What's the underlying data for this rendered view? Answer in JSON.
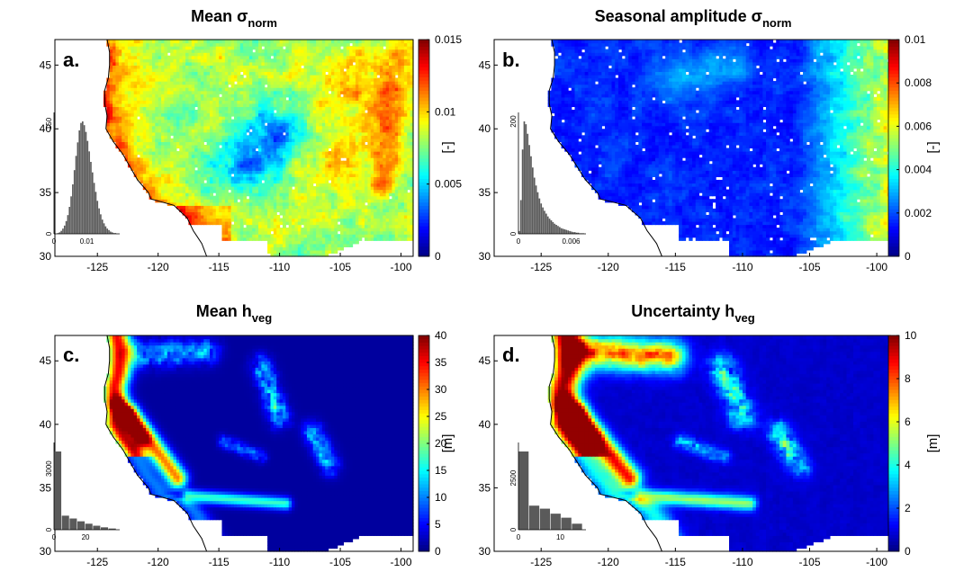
{
  "chart_data": [
    {
      "type": "heatmap",
      "panel_label": "a.",
      "title": "Mean σ",
      "title_sub": "norm",
      "colorbar": {
        "min": 0,
        "max": 0.015,
        "ticks": [
          "0",
          "0.005",
          "0.01",
          "0.015"
        ],
        "unit": "[-]"
      },
      "xlim": [
        -128.5,
        -99
      ],
      "ylim": [
        30,
        47
      ],
      "x_ticks": [
        "-125",
        "-120",
        "-115",
        "-110",
        "-105",
        "-100"
      ],
      "y_ticks": [
        "30",
        "35",
        "40",
        "45"
      ],
      "field": "sigma_mean",
      "histogram": {
        "type": "bar",
        "x_ticks": [
          "0",
          "0.01"
        ],
        "y_ticks": [
          "0",
          "150"
        ],
        "xlim": [
          0,
          0.015
        ],
        "values": [
          0,
          0,
          1,
          2,
          4,
          7,
          11,
          17,
          25,
          36,
          50,
          66,
          85,
          104,
          122,
          138,
          148,
          150,
          145,
          136,
          124,
          110,
          96,
          82,
          68,
          56,
          44,
          34,
          26,
          19,
          14,
          10,
          7,
          5,
          3,
          2,
          1,
          1,
          0,
          0
        ]
      }
    },
    {
      "type": "heatmap",
      "panel_label": "b.",
      "title": "Seasonal amplitude σ",
      "title_sub": "norm",
      "colorbar": {
        "min": 0,
        "max": 0.01,
        "ticks": [
          "0",
          "0.002",
          "0.004",
          "0.006",
          "0.008",
          "0.01"
        ],
        "unit": "[-]"
      },
      "xlim": [
        -128.5,
        -99
      ],
      "ylim": [
        30,
        47
      ],
      "x_ticks": [
        "-125",
        "-120",
        "-115",
        "-110",
        "-105",
        "-100"
      ],
      "y_ticks": [
        "30",
        "35",
        "40",
        "45"
      ],
      "field": "sigma_amp",
      "histogram": {
        "type": "bar",
        "x_ticks": [
          "0",
          "0.006"
        ],
        "y_ticks": [
          "0",
          "200"
        ],
        "xlim": [
          0,
          0.009
        ],
        "values": [
          5,
          60,
          150,
          200,
          195,
          178,
          158,
          138,
          118,
          100,
          86,
          74,
          63,
          54,
          47,
          41,
          36,
          31,
          27,
          24,
          21,
          18,
          16,
          14,
          12,
          10,
          9,
          8,
          7,
          6,
          5,
          4,
          3,
          3,
          2,
          2,
          1,
          1,
          1,
          0
        ]
      }
    },
    {
      "type": "heatmap",
      "panel_label": "c.",
      "title": "Mean h",
      "title_sub": "veg",
      "colorbar": {
        "min": 0,
        "max": 40,
        "ticks": [
          "0",
          "5",
          "10",
          "15",
          "20",
          "25",
          "30",
          "35",
          "40"
        ],
        "unit": "[m]"
      },
      "xlim": [
        -128.5,
        -99
      ],
      "ylim": [
        30,
        47
      ],
      "x_ticks": [
        "-125",
        "-120",
        "-115",
        "-110",
        "-105",
        "-100"
      ],
      "y_ticks": [
        "30",
        "35",
        "40",
        "45"
      ],
      "field": "hveg_mean",
      "histogram": {
        "type": "bar",
        "x_ticks": [
          "0",
          "20"
        ],
        "y_ticks": [
          "0",
          "3000"
        ],
        "xlim": [
          0,
          40
        ],
        "values": [
          3900,
          700,
          560,
          420,
          300,
          200,
          120,
          60
        ]
      }
    },
    {
      "type": "heatmap",
      "panel_label": "d.",
      "title": "Uncertainty h",
      "title_sub": "veg",
      "colorbar": {
        "min": 0,
        "max": 10,
        "ticks": [
          "0",
          "2",
          "4",
          "6",
          "8",
          "10"
        ],
        "unit": "[m]"
      },
      "xlim": [
        -128.5,
        -99
      ],
      "ylim": [
        30,
        47
      ],
      "x_ticks": [
        "-125",
        "-120",
        "-115",
        "-110",
        "-105",
        "-100"
      ],
      "y_ticks": [
        "30",
        "35",
        "40",
        "45"
      ],
      "field": "hveg_unc",
      "histogram": {
        "type": "bar",
        "x_ticks": [
          "0",
          "10"
        ],
        "y_ticks": [
          "0",
          "2500"
        ],
        "xlim": [
          0,
          15
        ],
        "values": [
          3900,
          1200,
          1050,
          800,
          600,
          300
        ]
      }
    }
  ],
  "colormap": [
    "#00007f",
    "#0000ff",
    "#007fff",
    "#00ffff",
    "#7fff7f",
    "#ffff00",
    "#ff7f00",
    "#ff0000",
    "#7f0000"
  ]
}
